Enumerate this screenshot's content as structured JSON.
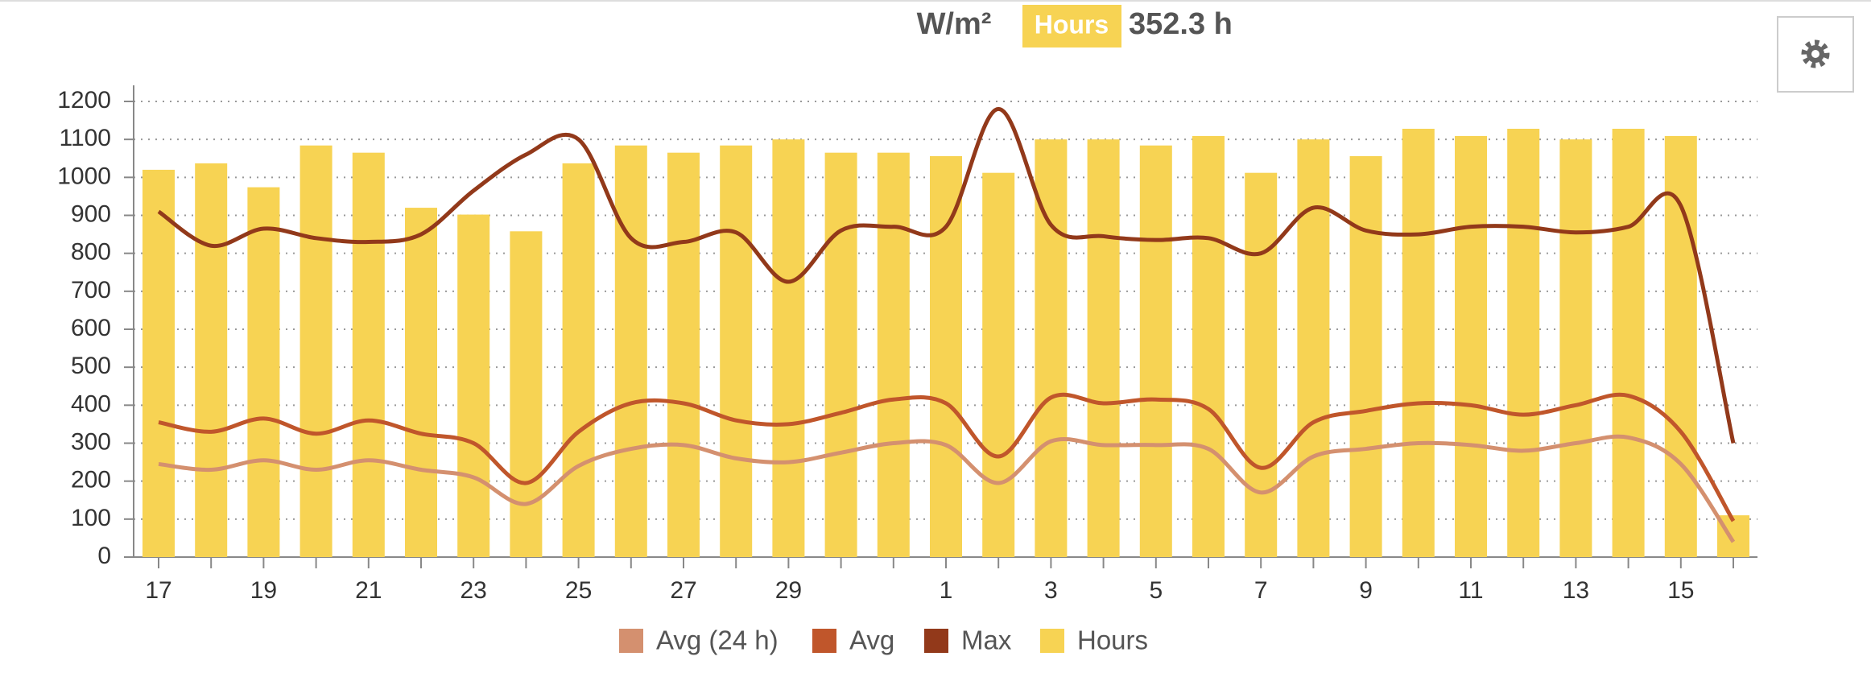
{
  "chart_data": {
    "type": "bar-line",
    "title": "W/m²",
    "badge": "Hours",
    "subtitle": "352.3 h",
    "categories": [
      "17",
      null,
      "19",
      null,
      "21",
      null,
      "23",
      null,
      "25",
      null,
      "27",
      null,
      "29",
      null,
      null,
      "1",
      null,
      "3",
      null,
      "5",
      null,
      "7",
      null,
      "9",
      null,
      "11",
      null,
      "13",
      null,
      "15",
      null
    ],
    "series": [
      {
        "name": "Avg (24 h)",
        "kind": "line",
        "color": "#d4906f",
        "values": [
          245,
          230,
          255,
          230,
          255,
          230,
          210,
          140,
          240,
          285,
          295,
          260,
          250,
          275,
          300,
          295,
          195,
          305,
          295,
          295,
          285,
          170,
          265,
          285,
          300,
          295,
          280,
          300,
          315,
          245,
          40
        ]
      },
      {
        "name": "Avg",
        "kind": "line",
        "color": "#c0562b",
        "values": [
          355,
          330,
          365,
          325,
          360,
          325,
          300,
          195,
          330,
          405,
          405,
          360,
          350,
          380,
          415,
          405,
          265,
          420,
          405,
          415,
          390,
          235,
          355,
          385,
          405,
          400,
          375,
          400,
          425,
          330,
          95
        ]
      },
      {
        "name": "Max",
        "kind": "line",
        "color": "#92391a",
        "values": [
          910,
          820,
          865,
          840,
          830,
          850,
          965,
          1060,
          1100,
          840,
          830,
          855,
          725,
          860,
          870,
          870,
          1180,
          875,
          845,
          835,
          840,
          800,
          920,
          860,
          850,
          870,
          870,
          855,
          870,
          925,
          300
        ]
      },
      {
        "name": "Hours",
        "kind": "bar",
        "color": "#f7d353",
        "values": [
          1020,
          1037,
          974,
          1084,
          1065,
          920,
          902,
          858,
          1037,
          1084,
          1065,
          1084,
          1100,
          1065,
          1065,
          1056,
          1012,
          1100,
          1100,
          1084,
          1109,
          1012,
          1100,
          1056,
          1128,
          1109,
          1128,
          1100,
          1128,
          1109,
          110
        ]
      }
    ],
    "ylim": [
      0,
      1200
    ],
    "yticks": [
      0,
      100,
      200,
      300,
      400,
      500,
      600,
      700,
      800,
      900,
      1000,
      1100,
      1200
    ],
    "grid": true
  }
}
